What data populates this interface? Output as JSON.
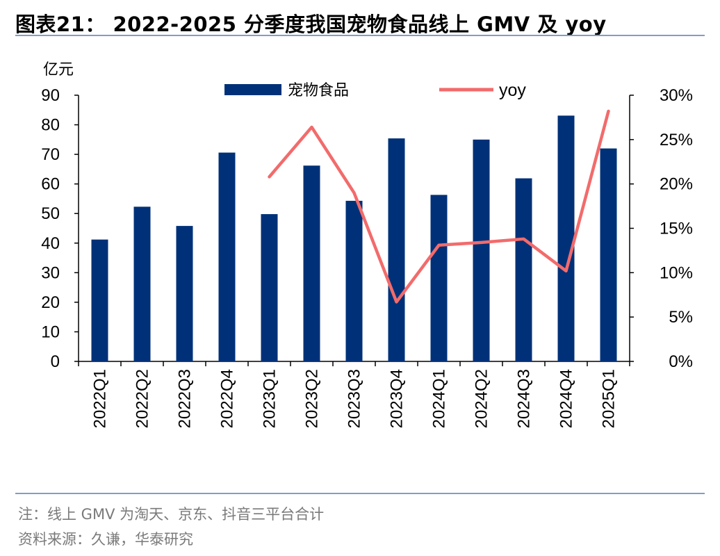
{
  "title": "图表21： 2022-2025 分季度我国宠物食品线上 GMV 及 yoy",
  "note": "注：线上 GMV 为淘天、京东、抖音三平台合计",
  "source": "资料来源：久谦，华泰研究",
  "colors": {
    "bar": "#003178",
    "line": "#f26b6b",
    "rule": "#7f9ec6"
  },
  "chart_data": {
    "type": "bar",
    "left_unit": "亿元",
    "categories": [
      "2022Q1",
      "2022Q2",
      "2022Q3",
      "2022Q4",
      "2023Q1",
      "2023Q2",
      "2023Q3",
      "2023Q4",
      "2024Q1",
      "2024Q2",
      "2024Q3",
      "2024Q4",
      "2025Q1"
    ],
    "series": [
      {
        "name": "宠物食品",
        "type": "bar",
        "axis": "left",
        "values": [
          41.2,
          52.3,
          45.8,
          70.6,
          49.8,
          66.2,
          54.3,
          75.4,
          56.3,
          75.0,
          61.9,
          83.1,
          72.0
        ]
      },
      {
        "name": "yoy",
        "type": "line",
        "axis": "right",
        "values": [
          null,
          null,
          null,
          null,
          0.208,
          0.264,
          0.19,
          0.067,
          0.131,
          0.134,
          0.138,
          0.102,
          0.282
        ]
      }
    ],
    "ylim_left": [
      0,
      90
    ],
    "yticks_left": [
      "0",
      "10",
      "20",
      "30",
      "40",
      "50",
      "60",
      "70",
      "80",
      "90"
    ],
    "ylim_right": [
      0,
      0.3
    ],
    "yticks_right": [
      "0%",
      "5%",
      "10%",
      "15%",
      "20%",
      "25%",
      "30%"
    ],
    "legend": "top"
  }
}
